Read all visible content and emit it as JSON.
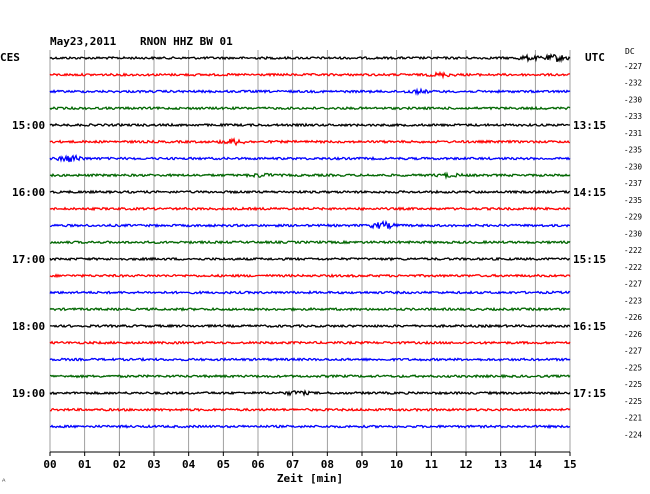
{
  "header": {
    "date": "May23,2011",
    "station": "RNON HHZ BW 01",
    "left_tz": "CES",
    "right_tz": "UTC",
    "dc_label": "DC"
  },
  "chart_data": {
    "type": "line",
    "title": "May23,2011   RNON HHZ BW 01",
    "xlabel": "Zeit [min]",
    "xlim": [
      0,
      15
    ],
    "x_ticks": [
      "00",
      "01",
      "02",
      "03",
      "04",
      "05",
      "06",
      "07",
      "08",
      "09",
      "10",
      "11",
      "12",
      "13",
      "14",
      "15"
    ],
    "traces_per_hour": 4,
    "series_colors": [
      "#000000",
      "#ff0000",
      "#0000ff",
      "#006600"
    ],
    "left_hour_labels": [
      "15:00",
      "16:00",
      "17:00",
      "18:00",
      "19:00"
    ],
    "right_hour_labels": [
      "13:15",
      "14:15",
      "15:15",
      "16:15",
      "17:15"
    ],
    "hour_label_row_indices": [
      4,
      8,
      12,
      16,
      20
    ],
    "dc_offsets": [
      -227,
      -232,
      -230,
      -233,
      -231,
      -235,
      -230,
      -237,
      -235,
      -229,
      -230,
      -222,
      -222,
      -227,
      -223,
      -226,
      -226,
      -227,
      -225,
      -225,
      -225,
      -221,
      -224
    ],
    "events": [
      {
        "row": 0,
        "minute": 14.6,
        "amplitude": 2.8
      },
      {
        "row": 0,
        "minute": 13.8,
        "amplitude": 1.6
      },
      {
        "row": 1,
        "minute": 11.3,
        "amplitude": 1.4
      },
      {
        "row": 2,
        "minute": 10.6,
        "amplitude": 1.3
      },
      {
        "row": 5,
        "minute": 5.3,
        "amplitude": 2.2
      },
      {
        "row": 6,
        "minute": 0.6,
        "amplitude": 2.8
      },
      {
        "row": 7,
        "minute": 6.1,
        "amplitude": 1.3
      },
      {
        "row": 7,
        "minute": 11.5,
        "amplitude": 1.2
      },
      {
        "row": 10,
        "minute": 9.6,
        "amplitude": 2.8
      },
      {
        "row": 20,
        "minute": 7.1,
        "amplitude": 1.5
      }
    ],
    "footer_mark": "ᴬ"
  }
}
